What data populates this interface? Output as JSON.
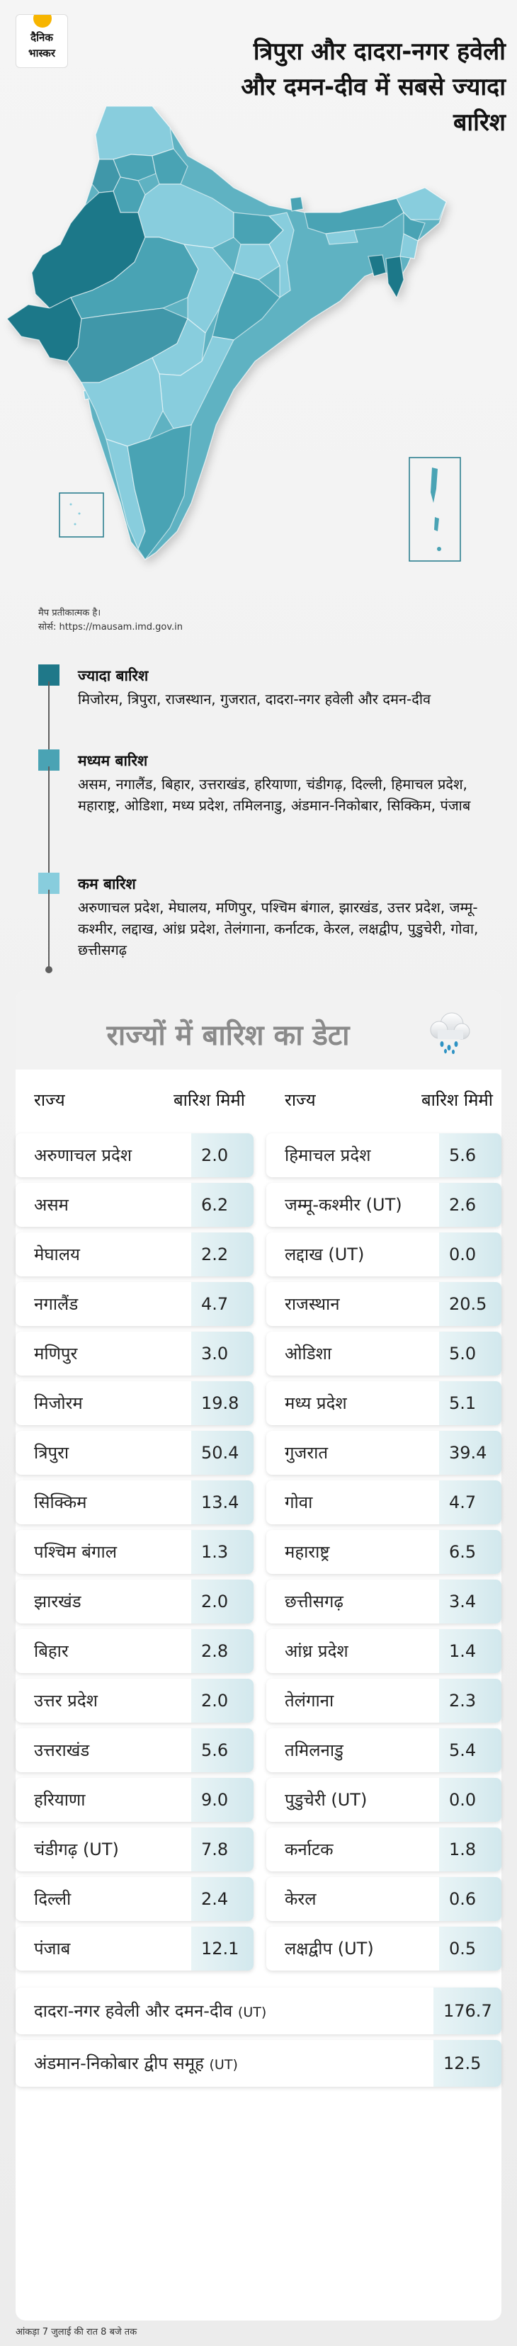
{
  "logo": {
    "line1": "दैनिक",
    "line2": "भास्कर"
  },
  "headline": "त्रिपुरा और दादरा-नगर हवेली और दमन-दीव में सबसे ज्यादा बारिश",
  "map_note": {
    "line1": "मैप प्रतीकात्मक है।",
    "line2": "सोर्स: https://mausam.imd.gov.in"
  },
  "colors": {
    "high": "#1f7889",
    "medium": "#4aa3b4",
    "low": "#88cddd"
  },
  "legend": [
    {
      "title": "ज्यादा बारिश",
      "text": "मिजोरम, त्रिपुरा, राजस्थान, गुजरात, दादरा-नगर हवेली और दमन-दीव",
      "color": "#1f7889"
    },
    {
      "title": "मध्यम बारिश",
      "text": "असम, नगालैंड, बिहार, उत्तराखंड, हरियाणा, चंडीगढ़, दिल्ली, हिमाचल प्रदेश, महाराष्ट्र, ओडिशा, मध्य प्रदेश, तमिलनाडु, अंडमान-निकोबार, सिक्किम, पंजाब",
      "color": "#4aa3b4"
    },
    {
      "title": "कम बारिश",
      "text": "अरुणाचल प्रदेश, मेघालय, मणिपुर, पश्चिम बंगाल, झारखंड, उत्तर प्रदेश, जम्मू-कश्मीर, लद्दाख, आंध्र प्रदेश, तेलंगाना, कर्नाटक, केरल, लक्षद्वीप, पुडुचेरी, गोवा, छत्तीसगढ़",
      "color": "#88cddd"
    }
  ],
  "table": {
    "title": "राज्यों में बारिश का डेटा",
    "col_state": "राज्य",
    "col_rain": "बारिश मिमी",
    "left": [
      {
        "state": "अरुणाचल प्रदेश",
        "rain": "2.0"
      },
      {
        "state": "असम",
        "rain": "6.2"
      },
      {
        "state": "मेघालय",
        "rain": "2.2"
      },
      {
        "state": "नगालैंड",
        "rain": "4.7"
      },
      {
        "state": "मणिपुर",
        "rain": "3.0"
      },
      {
        "state": "मिजोरम",
        "rain": "19.8"
      },
      {
        "state": "त्रिपुरा",
        "rain": "50.4"
      },
      {
        "state": "सिक्किम",
        "rain": "13.4"
      },
      {
        "state": "पश्चिम बंगाल",
        "rain": "1.3"
      },
      {
        "state": "झारखंड",
        "rain": "2.0"
      },
      {
        "state": "बिहार",
        "rain": "2.8"
      },
      {
        "state": "उत्तर प्रदेश",
        "rain": "2.0"
      },
      {
        "state": "उत्तराखंड",
        "rain": "5.6"
      },
      {
        "state": "हरियाणा",
        "rain": "9.0"
      },
      {
        "state": "चंडीगढ़ (UT)",
        "rain": "7.8"
      },
      {
        "state": "दिल्ली",
        "rain": "2.4"
      },
      {
        "state": "पंजाब",
        "rain": "12.1"
      }
    ],
    "right": [
      {
        "state": "हिमाचल प्रदेश",
        "rain": "5.6"
      },
      {
        "state": "जम्मू-कश्मीर (UT)",
        "rain": "2.6"
      },
      {
        "state": "लद्दाख (UT)",
        "rain": "0.0"
      },
      {
        "state": "राजस्थान",
        "rain": "20.5"
      },
      {
        "state": "ओडिशा",
        "rain": "5.0"
      },
      {
        "state": "मध्य प्रदेश",
        "rain": "5.1"
      },
      {
        "state": "गुजरात",
        "rain": "39.4"
      },
      {
        "state": "गोवा",
        "rain": "4.7"
      },
      {
        "state": "महाराष्ट्र",
        "rain": "6.5"
      },
      {
        "state": "छत्तीसगढ़",
        "rain": "3.4"
      },
      {
        "state": "आंध्र प्रदेश",
        "rain": "1.4"
      },
      {
        "state": "तेलंगाना",
        "rain": "2.3"
      },
      {
        "state": "तमिलनाडु",
        "rain": "5.4"
      },
      {
        "state": "पुडुचेरी (UT)",
        "rain": "0.0"
      },
      {
        "state": "कर्नाटक",
        "rain": "1.8"
      },
      {
        "state": "केरल",
        "rain": "0.6"
      },
      {
        "state": "लक्षद्वीप (UT)",
        "rain": "0.5"
      }
    ],
    "wide": [
      {
        "state": "दादरा-नगर हवेली और दमन-दीव",
        "suffix": "(UT)",
        "rain": "176.7"
      },
      {
        "state": "अंडमान-निकोबार द्वीप समूह",
        "suffix": "(UT)",
        "rain": "12.5"
      }
    ]
  },
  "footer": "आंकड़ा 7 जुलाई की रात 8 बजे तक"
}
